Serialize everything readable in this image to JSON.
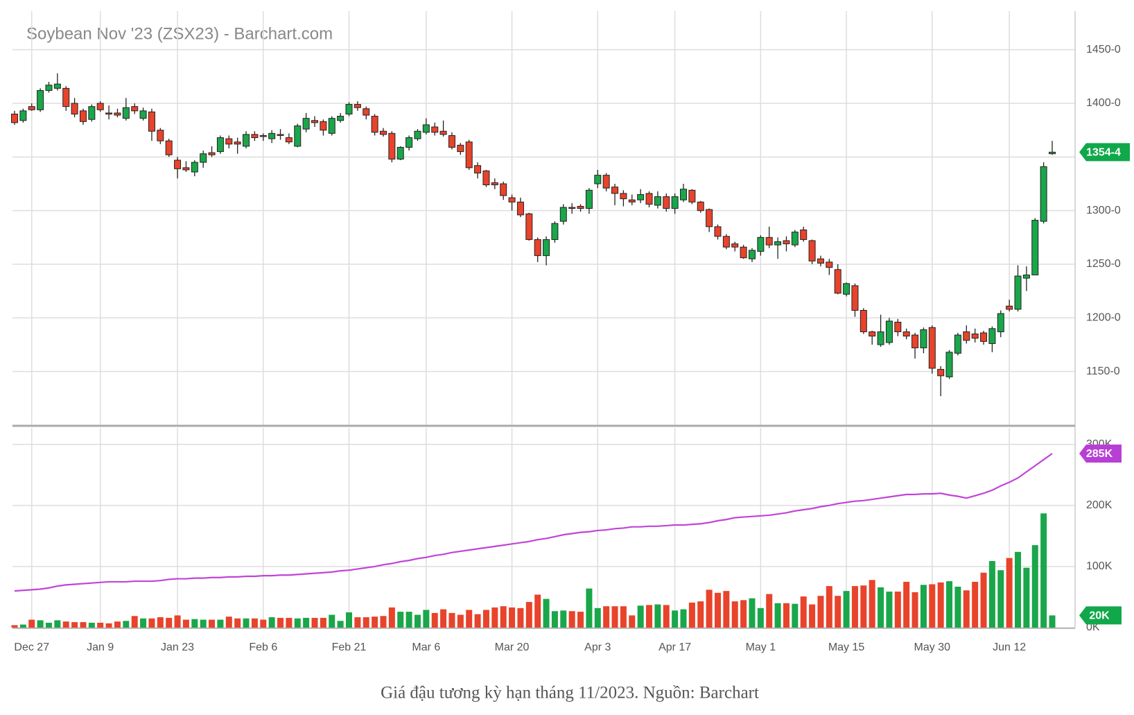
{
  "chart_data": [
    {
      "type": "candlestick",
      "title": "Soybean Nov '23 (ZSX23) - Barchart.com",
      "up_color": "#1aa64a",
      "down_color": "#e8432b",
      "last_color": "#10a84a",
      "open": [
        1390,
        1384,
        1397,
        1394,
        1412,
        1414,
        1414,
        1400,
        1393,
        1385,
        1400,
        1391,
        1391,
        1386,
        1397,
        1386,
        1392,
        1375,
        1365,
        1347,
        1340,
        1336,
        1345,
        1354,
        1355,
        1367,
        1364,
        1360,
        1371,
        1370,
        1367,
        1371,
        1368,
        1360,
        1376,
        1384,
        1383,
        1372,
        1384,
        1390,
        1399,
        1395,
        1388,
        1374,
        1372,
        1348,
        1359,
        1367,
        1373,
        1378,
        1374,
        1370,
        1361,
        1364,
        1342,
        1337,
        1326,
        1325,
        1312,
        1308,
        1297,
        1273,
        1258,
        1273,
        1290,
        1303,
        1304,
        1302,
        1325,
        1333,
        1322,
        1316,
        1310,
        1310,
        1316,
        1305,
        1313,
        1302,
        1310,
        1319,
        1308,
        1301,
        1285,
        1276,
        1269,
        1266,
        1255,
        1262,
        1275,
        1268,
        1272,
        1268,
        1282,
        1272,
        1255,
        1252,
        1245,
        1222,
        1230,
        1207,
        1187,
        1175,
        1177,
        1196,
        1187,
        1184,
        1172,
        1191,
        1152,
        1145,
        1167,
        1187,
        1185,
        1186,
        1176,
        1187,
        1211,
        1208,
        1237,
        1240,
        1290,
        1353
      ],
      "high": [
        1393,
        1395,
        1400,
        1414,
        1420,
        1428,
        1416,
        1405,
        1395,
        1399,
        1402,
        1398,
        1395,
        1405,
        1400,
        1396,
        1395,
        1377,
        1367,
        1350,
        1346,
        1347,
        1356,
        1360,
        1370,
        1370,
        1368,
        1374,
        1374,
        1372,
        1375,
        1376,
        1372,
        1381,
        1391,
        1388,
        1385,
        1388,
        1391,
        1401,
        1402,
        1397,
        1390,
        1377,
        1374,
        1360,
        1370,
        1376,
        1386,
        1382,
        1384,
        1373,
        1363,
        1366,
        1345,
        1338,
        1330,
        1327,
        1315,
        1312,
        1298,
        1275,
        1276,
        1290,
        1306,
        1307,
        1306,
        1321,
        1338,
        1335,
        1325,
        1319,
        1315,
        1320,
        1318,
        1318,
        1316,
        1316,
        1325,
        1320,
        1309,
        1302,
        1287,
        1278,
        1271,
        1268,
        1265,
        1277,
        1285,
        1275,
        1276,
        1282,
        1285,
        1273,
        1258,
        1255,
        1250,
        1233,
        1232,
        1209,
        1188,
        1203,
        1200,
        1199,
        1190,
        1186,
        1191,
        1193,
        1155,
        1170,
        1186,
        1193,
        1190,
        1188,
        1192,
        1207,
        1217,
        1249,
        1248,
        1293,
        1345,
        1365
      ],
      "low": [
        1380,
        1382,
        1393,
        1392,
        1410,
        1412,
        1393,
        1387,
        1380,
        1383,
        1392,
        1385,
        1387,
        1384,
        1390,
        1384,
        1365,
        1362,
        1350,
        1330,
        1336,
        1332,
        1340,
        1350,
        1353,
        1358,
        1353,
        1358,
        1365,
        1365,
        1363,
        1366,
        1362,
        1359,
        1373,
        1378,
        1370,
        1370,
        1382,
        1388,
        1393,
        1385,
        1370,
        1369,
        1345,
        1347,
        1356,
        1365,
        1371,
        1370,
        1369,
        1357,
        1352,
        1338,
        1330,
        1322,
        1320,
        1310,
        1300,
        1294,
        1272,
        1252,
        1249,
        1270,
        1287,
        1297,
        1299,
        1297,
        1321,
        1318,
        1305,
        1304,
        1305,
        1307,
        1303,
        1302,
        1299,
        1297,
        1308,
        1306,
        1298,
        1280,
        1273,
        1264,
        1262,
        1255,
        1252,
        1258,
        1265,
        1255,
        1262,
        1266,
        1271,
        1250,
        1248,
        1240,
        1222,
        1220,
        1201,
        1185,
        1175,
        1173,
        1175,
        1183,
        1180,
        1162,
        1167,
        1148,
        1127,
        1143,
        1165,
        1176,
        1177,
        1175,
        1168,
        1182,
        1206,
        1206,
        1225,
        1240,
        1288,
        1352
      ],
      "close": [
        1382,
        1393,
        1394,
        1412,
        1417,
        1418,
        1397,
        1390,
        1383,
        1397,
        1394,
        1390,
        1389,
        1396,
        1393,
        1393,
        1374,
        1365,
        1352,
        1339,
        1338,
        1345,
        1353,
        1352,
        1368,
        1362,
        1362,
        1371,
        1368,
        1369,
        1372,
        1370,
        1364,
        1379,
        1386,
        1382,
        1375,
        1386,
        1388,
        1399,
        1396,
        1389,
        1373,
        1371,
        1348,
        1359,
        1368,
        1374,
        1380,
        1373,
        1371,
        1359,
        1355,
        1340,
        1335,
        1324,
        1324,
        1314,
        1308,
        1296,
        1273,
        1258,
        1273,
        1288,
        1303,
        1302,
        1302,
        1319,
        1333,
        1321,
        1316,
        1311,
        1308,
        1315,
        1306,
        1313,
        1302,
        1313,
        1320,
        1308,
        1300,
        1285,
        1276,
        1266,
        1266,
        1256,
        1263,
        1275,
        1268,
        1271,
        1269,
        1280,
        1273,
        1253,
        1251,
        1247,
        1223,
        1232,
        1207,
        1187,
        1183,
        1187,
        1197,
        1187,
        1183,
        1172,
        1189,
        1153,
        1146,
        1168,
        1184,
        1179,
        1181,
        1178,
        1190,
        1204,
        1208,
        1239,
        1240,
        1291,
        1341,
        1354.5
      ],
      "last_close_label": "1354-4",
      "ylim": [
        1100,
        1486
      ],
      "yticks": [
        {
          "value": 1150,
          "label": "1150-0"
        },
        {
          "value": 1200,
          "label": "1200-0"
        },
        {
          "value": 1250,
          "label": "1250-0"
        },
        {
          "value": 1300,
          "label": "1300-0"
        },
        {
          "value": 1350,
          "label": "1350-0"
        },
        {
          "value": 1400,
          "label": "1400-0"
        },
        {
          "value": 1450,
          "label": "1450-0"
        }
      ],
      "grid": true
    },
    {
      "type": "bar",
      "caption": "Giá đậu tương kỳ hạn tháng 11/2023. Nguồn: Barchart",
      "categories": [
        null,
        null,
        "Dec 27",
        null,
        null,
        null,
        null,
        null,
        null,
        null,
        "Jan 9",
        null,
        null,
        null,
        null,
        null,
        null,
        null,
        null,
        "Jan 23",
        null,
        null,
        null,
        null,
        null,
        null,
        null,
        null,
        null,
        "Feb 6",
        null,
        null,
        null,
        null,
        null,
        null,
        null,
        null,
        null,
        "Feb 21",
        null,
        null,
        null,
        null,
        null,
        null,
        null,
        null,
        "Mar 6",
        null,
        null,
        null,
        null,
        null,
        null,
        null,
        null,
        null,
        "Mar 20",
        null,
        null,
        null,
        null,
        null,
        null,
        null,
        null,
        null,
        "Apr 3",
        null,
        null,
        null,
        null,
        null,
        null,
        null,
        null,
        "Apr 17",
        null,
        null,
        null,
        null,
        null,
        null,
        null,
        null,
        null,
        "May 1",
        null,
        null,
        null,
        null,
        null,
        null,
        null,
        null,
        null,
        "May 15",
        null,
        null,
        null,
        null,
        null,
        null,
        null,
        null,
        null,
        "May 30",
        null,
        null,
        null,
        null,
        null,
        null,
        null,
        null,
        "Jun 12",
        null,
        null,
        null,
        null,
        null
      ],
      "series": [
        {
          "type": "bar",
          "values": [
            4000,
            5000,
            13000,
            12000,
            8000,
            12000,
            10000,
            9000,
            9000,
            8000,
            8000,
            7000,
            10000,
            11000,
            19000,
            15000,
            15000,
            17000,
            16000,
            20000,
            13000,
            14000,
            13000,
            13000,
            13000,
            18000,
            15000,
            15000,
            15000,
            13000,
            17000,
            16000,
            16000,
            15000,
            16000,
            16000,
            16000,
            21000,
            11000,
            25000,
            17000,
            17000,
            18000,
            19000,
            33000,
            26000,
            26000,
            21000,
            29000,
            24000,
            30000,
            24000,
            21000,
            29000,
            22000,
            29000,
            33000,
            35000,
            33000,
            32000,
            42000,
            54000,
            47000,
            27000,
            28000,
            27000,
            26000,
            64000,
            32000,
            35000,
            35000,
            35000,
            20000,
            36000,
            37000,
            38000,
            37000,
            28000,
            30000,
            41000,
            43000,
            62000,
            57000,
            60000,
            43000,
            45000,
            48000,
            32000,
            55000,
            40000,
            40000,
            39000,
            51000,
            38000,
            52000,
            68000,
            52000,
            60000,
            68000,
            69000,
            78000,
            66000,
            59000,
            59000,
            75000,
            58000,
            70000,
            71000,
            74000,
            76000,
            67000,
            61000,
            75000,
            90000,
            109000,
            94000,
            114000,
            124000,
            98000,
            135000,
            187000,
            20000
          ],
          "last_label": "20K",
          "tag_color": "#10a84a"
        },
        {
          "type": "line",
          "color": "#c044d8",
          "values": [
            60000,
            61000,
            62000,
            63000,
            65000,
            68000,
            70000,
            71000,
            72000,
            73000,
            74000,
            75000,
            75000,
            75000,
            76000,
            76000,
            76000,
            77000,
            79000,
            80000,
            80000,
            81000,
            81000,
            82000,
            82000,
            83000,
            83000,
            84000,
            84000,
            85000,
            85000,
            86000,
            86000,
            87000,
            88000,
            89000,
            90000,
            91000,
            93000,
            94000,
            96000,
            98000,
            100000,
            103000,
            105000,
            108000,
            110000,
            113000,
            115000,
            118000,
            120000,
            123000,
            125000,
            127000,
            129000,
            131000,
            133000,
            135000,
            137000,
            139000,
            141000,
            144000,
            146000,
            149000,
            152000,
            154000,
            156000,
            157000,
            159000,
            160000,
            162000,
            163000,
            165000,
            165000,
            166000,
            166000,
            167000,
            168000,
            168000,
            169000,
            170000,
            172000,
            175000,
            177000,
            180000,
            181000,
            182000,
            183000,
            184000,
            186000,
            188000,
            191000,
            193000,
            195000,
            198000,
            200000,
            203000,
            205000,
            207000,
            208000,
            210000,
            212000,
            214000,
            216000,
            218000,
            218000,
            219000,
            219000,
            220000,
            217000,
            215000,
            212000,
            216000,
            220000,
            225000,
            232000,
            238000,
            245000,
            255000,
            265000,
            275000,
            285000
          ],
          "last_label": "285K",
          "tag_color": "#b83fd4"
        }
      ],
      "ylim": [
        0,
        327000
      ],
      "yticks": [
        {
          "value": 0,
          "label": "0K"
        },
        {
          "value": 100000,
          "label": "100K"
        },
        {
          "value": 200000,
          "label": "200K"
        },
        {
          "value": 300000,
          "label": "300K"
        }
      ],
      "grid": true
    }
  ]
}
